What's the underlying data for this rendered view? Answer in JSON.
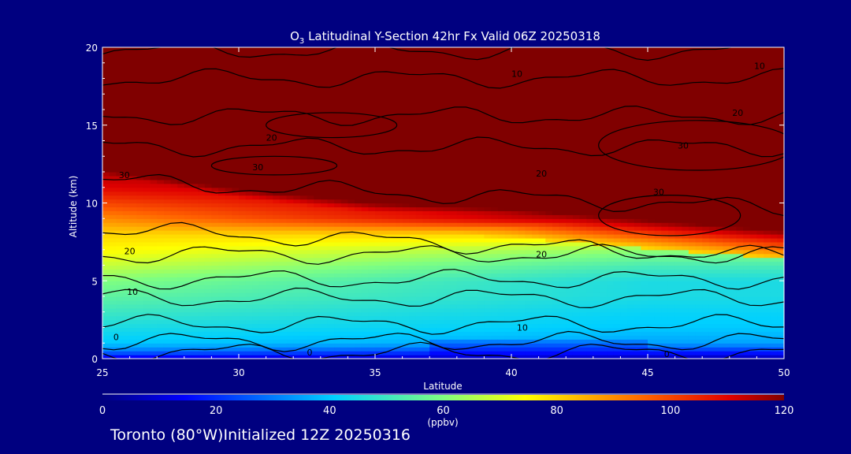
{
  "chart_data": {
    "type": "heatmap",
    "title": {
      "species": "O",
      "subscript": "3",
      "rest": " Latitudinal Y-Section 42hr  Fx Valid 06Z 20250318"
    },
    "xlabel": "Latitude",
    "ylabel": "Altitude (km)",
    "xlim": [
      25,
      50
    ],
    "ylim": [
      0,
      20
    ],
    "x_ticks": [
      "25",
      "30",
      "35",
      "40",
      "45",
      "50"
    ],
    "y_ticks": [
      "0",
      "5",
      "10",
      "15",
      "20"
    ],
    "colorbar": {
      "min": 0,
      "max": 120,
      "unit": "(ppbv)",
      "ticks": [
        "0",
        "20",
        "40",
        "60",
        "80",
        "100",
        "120"
      ]
    },
    "field_profile": {
      "altitude_km": [
        0,
        0.5,
        1,
        2,
        3,
        4,
        5,
        6,
        7,
        8,
        9,
        10,
        11,
        12,
        14,
        20
      ],
      "ozone_ppbv_lat25": [
        10,
        30,
        40,
        45,
        50,
        55,
        60,
        68,
        75,
        80,
        90,
        100,
        110,
        115,
        110,
        120
      ],
      "ozone_ppbv_lat45": [
        5,
        20,
        35,
        40,
        42,
        45,
        45,
        52,
        62,
        80,
        120,
        120,
        120,
        120,
        120,
        120
      ],
      "tropopause_km": [
        [
          25,
          11.5
        ],
        [
          30,
          10.3
        ],
        [
          35,
          9.4
        ],
        [
          40,
          9.0
        ],
        [
          45,
          8.3
        ],
        [
          50,
          7.6
        ]
      ]
    },
    "contour_labels": [
      {
        "text": "10",
        "lat": 40.0,
        "alt": 18.1
      },
      {
        "text": "10",
        "lat": 48.9,
        "alt": 18.6
      },
      {
        "text": "20",
        "lat": 48.1,
        "alt": 15.6
      },
      {
        "text": "30",
        "lat": 46.1,
        "alt": 13.5
      },
      {
        "text": "20",
        "lat": 31.0,
        "alt": 14.0
      },
      {
        "text": "30",
        "lat": 30.5,
        "alt": 12.1
      },
      {
        "text": "30",
        "lat": 25.6,
        "alt": 11.6
      },
      {
        "text": "20",
        "lat": 40.9,
        "alt": 11.7
      },
      {
        "text": "30",
        "lat": 45.2,
        "alt": 10.5
      },
      {
        "text": "20",
        "lat": 25.8,
        "alt": 6.7
      },
      {
        "text": "20",
        "lat": 40.9,
        "alt": 6.5
      },
      {
        "text": "10",
        "lat": 25.9,
        "alt": 4.1
      },
      {
        "text": "10",
        "lat": 40.2,
        "alt": 1.8
      },
      {
        "text": "0",
        "lat": 25.4,
        "alt": 1.2
      },
      {
        "text": "0",
        "lat": 32.5,
        "alt": 0.2
      },
      {
        "text": "0",
        "lat": 45.6,
        "alt": 0.1
      }
    ]
  },
  "footer": {
    "location": "Toronto (80°W)Initialized 12Z 20250316"
  }
}
